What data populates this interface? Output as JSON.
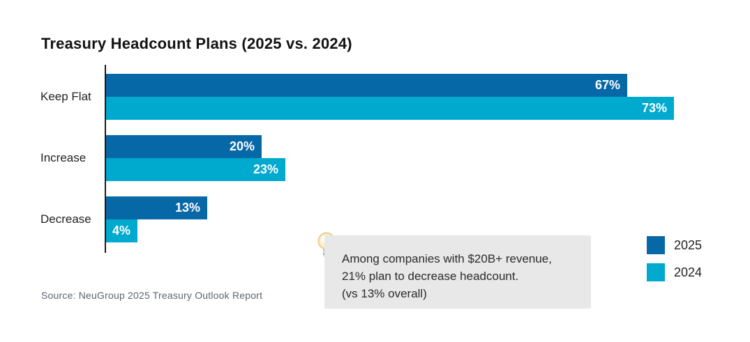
{
  "title": "Treasury Headcount Plans (2025 vs. 2024)",
  "source": "Source: NeuGroup 2025 Treasury Outlook Report",
  "callout": {
    "icon": "lightbulb-icon",
    "line1": "Among companies with $20B+ revenue,",
    "line2": "21% plan to decrease headcount.",
    "line3": "(vs 13% overall)",
    "background": "#e8e8e8"
  },
  "legend": {
    "position": "bottom-right",
    "items": [
      {
        "label": "2025",
        "color": "#0768a8"
      },
      {
        "label": "2024",
        "color": "#00a9ce"
      }
    ]
  },
  "colors": {
    "series_2025": "#0768a8",
    "series_2024": "#00a9ce",
    "axis": "#1a1a1a",
    "title_text": "#121212",
    "source_text": "#5b6573",
    "bar_value_text": "#ffffff"
  },
  "chart_data": {
    "type": "bar",
    "orientation": "horizontal",
    "title": "Treasury Headcount Plans (2025 vs. 2024)",
    "categories": [
      "Keep Flat",
      "Increase",
      "Decrease"
    ],
    "series": [
      {
        "name": "2025",
        "color": "#0768a8",
        "values": [
          67,
          20,
          13
        ]
      },
      {
        "name": "2024",
        "color": "#00a9ce",
        "values": [
          73,
          23,
          4
        ]
      }
    ],
    "value_label_format": "{v}%",
    "xlabel": "",
    "ylabel": "",
    "xmax_percent": 78,
    "grid": false,
    "value_labels": "inside-end",
    "legend_position": "bottom-right"
  }
}
